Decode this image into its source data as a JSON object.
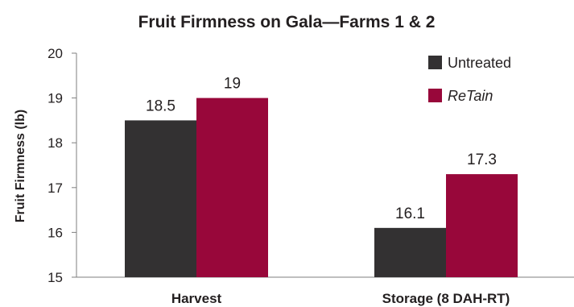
{
  "chart_data": {
    "type": "bar",
    "title": "Fruit Firmness on Gala—Farms 1 & 2",
    "xlabel": "",
    "ylabel": "Fruit Firmness (lb)",
    "ylim": [
      15,
      20
    ],
    "yticks": [
      "15",
      "16",
      "17",
      "18",
      "19",
      "20"
    ],
    "categories": [
      "Harvest",
      "Storage (8 DAH-RT)"
    ],
    "series": [
      {
        "name": "Untreated",
        "values": [
          18.5,
          16.1
        ],
        "labels": [
          "18.5",
          "16.1"
        ],
        "color": "#333132"
      },
      {
        "name": "ReTain",
        "values": [
          19,
          17.3
        ],
        "labels": [
          "19",
          "17.3"
        ],
        "color": "#98073a"
      }
    ],
    "grid": false,
    "legend_position": "top-right"
  }
}
